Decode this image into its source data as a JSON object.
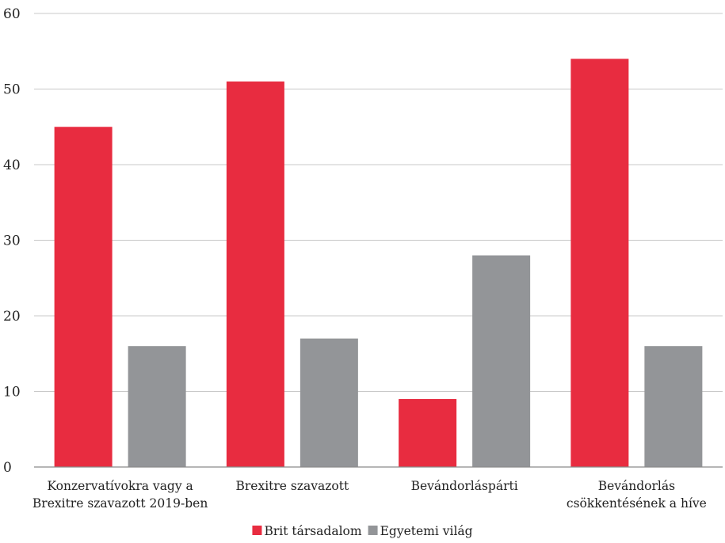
{
  "chart_data": {
    "type": "bar",
    "categories": [
      [
        "Konzervatívokra vagy a",
        "Brexitre szavazott 2019-ben"
      ],
      [
        "Brexitre szavazott"
      ],
      [
        "Bevándorláspárti"
      ],
      [
        "Bevándorlás",
        "csökkentésének a híve"
      ]
    ],
    "series": [
      {
        "name": "Brit társadalom",
        "values": [
          45,
          51,
          9,
          54
        ],
        "color": "#e82c40"
      },
      {
        "name": "Egyetemi világ",
        "values": [
          16,
          17,
          28,
          16
        ],
        "color": "#939598"
      }
    ],
    "ylim": [
      0,
      60
    ],
    "yticks": [
      0,
      10,
      20,
      30,
      40,
      50,
      60
    ],
    "grid": true,
    "legend_position": "bottom-center",
    "title": "",
    "xlabel": "",
    "ylabel": ""
  }
}
